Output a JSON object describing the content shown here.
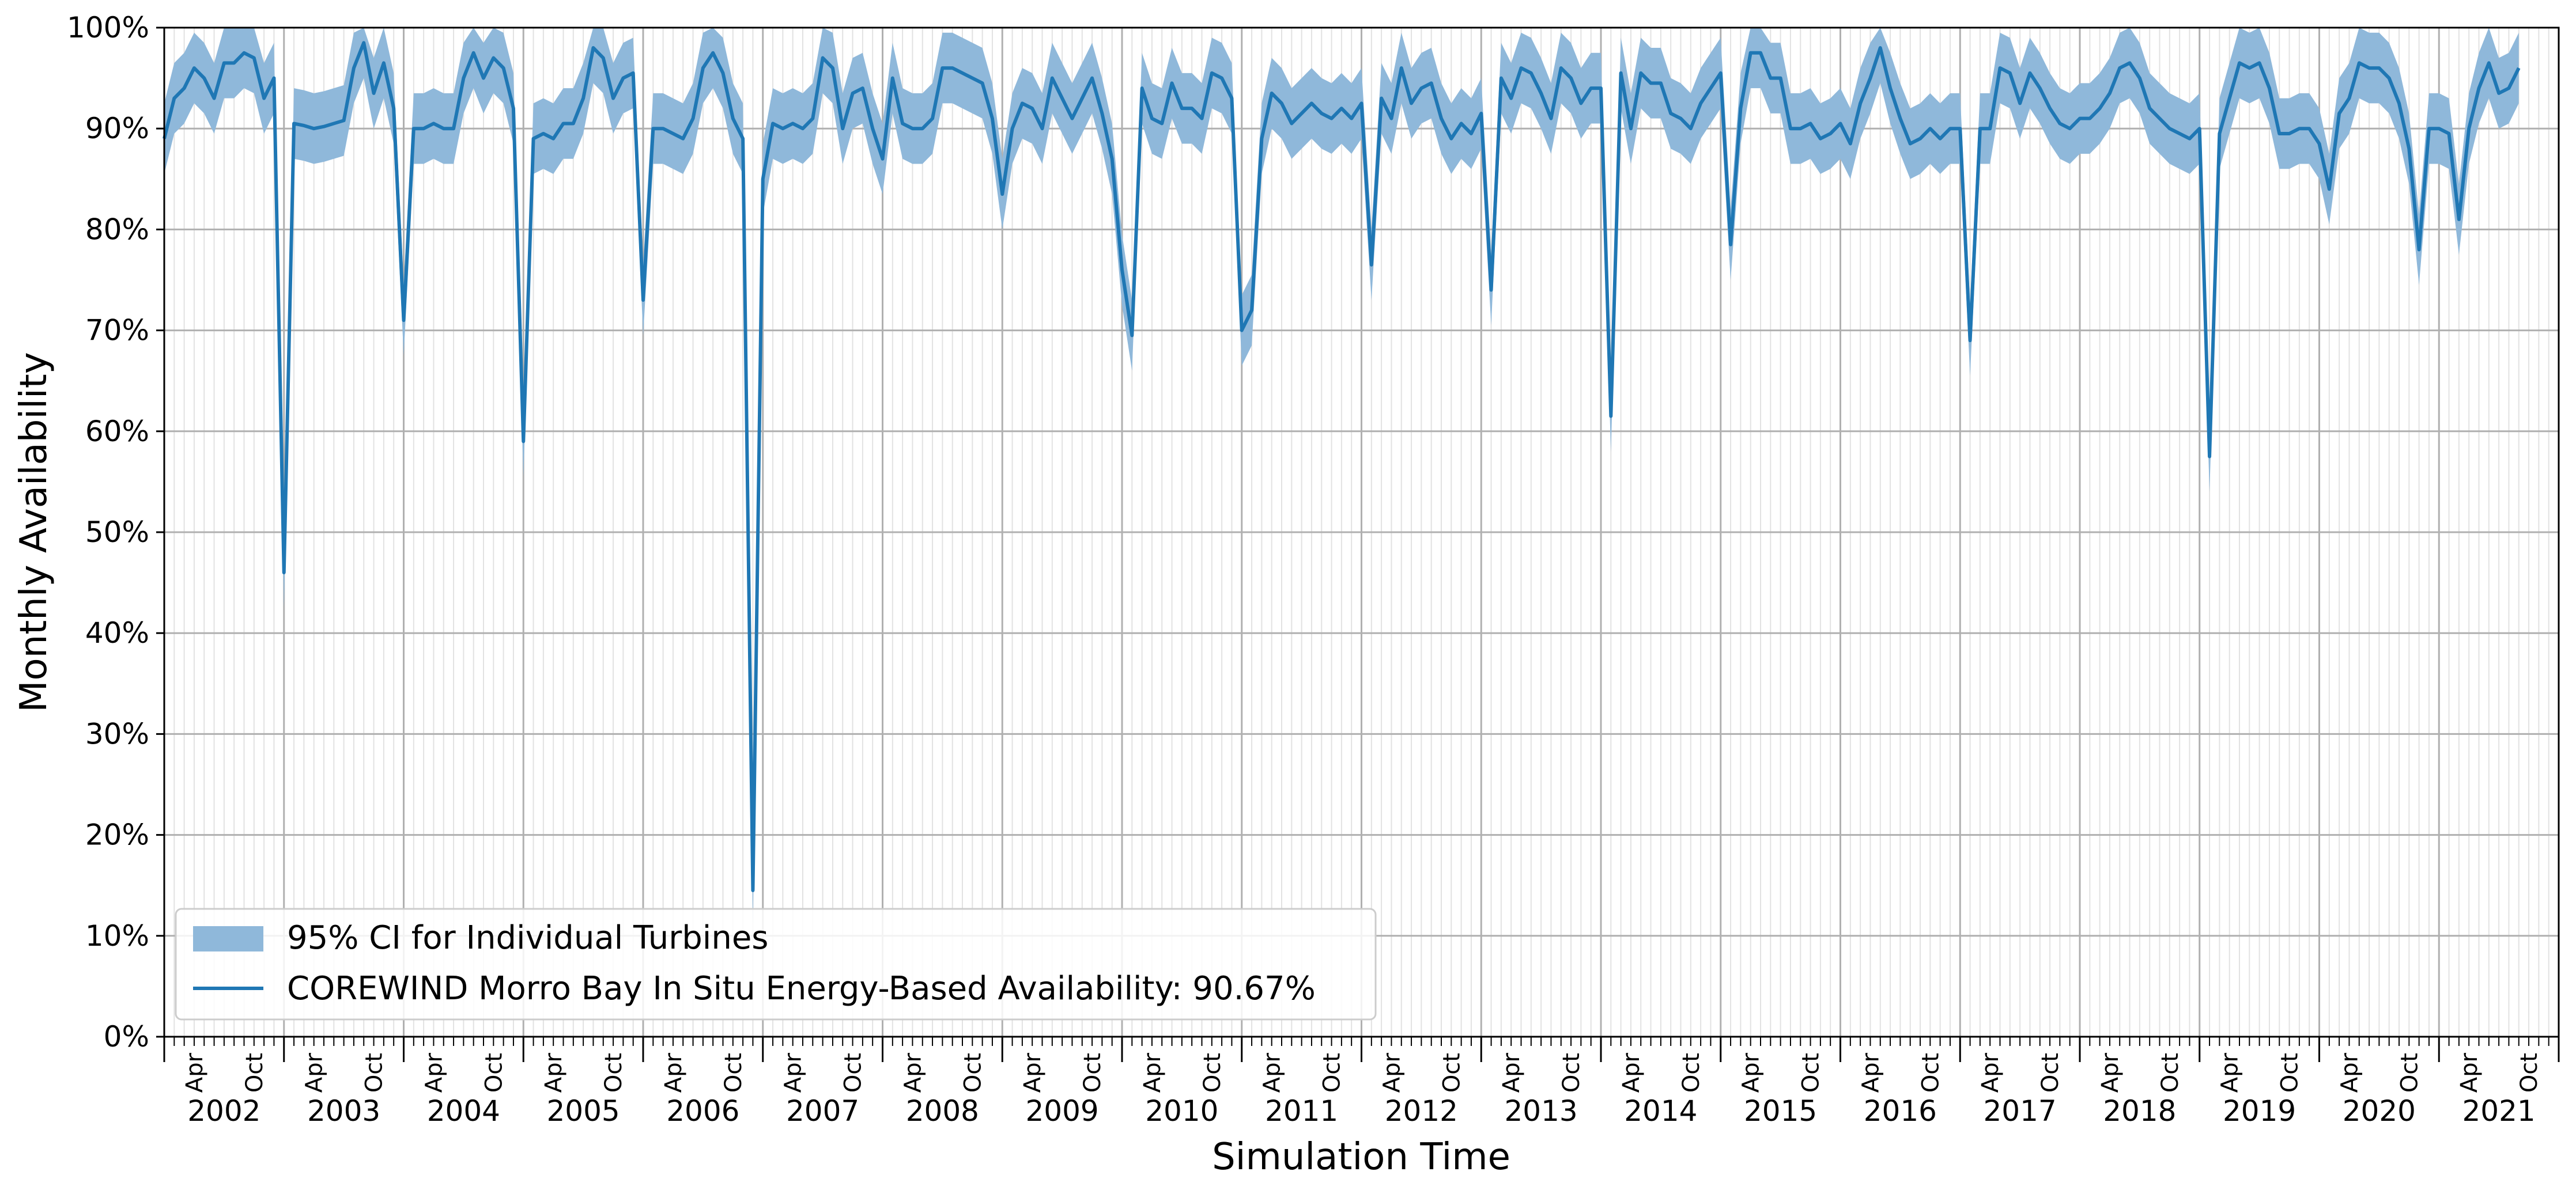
{
  "chart_data": {
    "type": "line",
    "xlabel": "Simulation Time",
    "ylabel": "Monthly Availability",
    "ylim": [
      0,
      100
    ],
    "xlim": [
      "2002-01",
      "2021-12"
    ],
    "y_ticks": [
      0,
      10,
      20,
      30,
      40,
      50,
      60,
      70,
      80,
      90,
      100
    ],
    "y_tick_suffix": "%",
    "x_major_labels": [
      "2002",
      "2003",
      "2004",
      "2005",
      "2006",
      "2007",
      "2008",
      "2009",
      "2010",
      "2011",
      "2012",
      "2013",
      "2014",
      "2015",
      "2016",
      "2017",
      "2018",
      "2019",
      "2020",
      "2021"
    ],
    "x_minor_labels": [
      "Apr",
      "Oct"
    ],
    "grid": true,
    "legend_position": "lower-left",
    "colors": {
      "line": "#1f77b4",
      "band": "#8fb8da",
      "grid_major": "#b0b0b0",
      "grid_minor": "#e2e2e2"
    },
    "series": [
      {
        "name": "COREWIND Morro Bay In Situ Energy-Based Availability: 90.67%",
        "kind": "line",
        "start": "2002-01",
        "values": [
          89,
          93,
          94,
          96,
          95,
          93,
          96.5,
          96.5,
          97.5,
          97,
          93,
          95,
          46,
          90.5,
          90.3,
          90,
          90.2,
          90.5,
          90.8,
          96,
          98.5,
          93.5,
          96.5,
          92,
          71,
          90,
          90,
          90.5,
          90,
          90,
          95,
          97.5,
          95,
          97,
          96,
          92,
          59,
          89,
          89.5,
          89,
          90.5,
          90.5,
          93,
          98,
          97,
          93,
          95,
          95.5,
          73,
          90,
          90,
          89.5,
          89,
          91,
          96,
          97.5,
          95.5,
          91,
          89,
          14.5,
          85,
          90.5,
          90,
          90.5,
          90,
          91,
          97,
          96,
          90,
          93.5,
          94,
          90,
          87,
          95,
          90.5,
          90,
          90,
          91,
          96,
          96,
          95.5,
          95,
          94.5,
          91,
          83.5,
          90,
          92.5,
          92,
          90,
          95,
          93,
          91,
          93,
          95,
          91.5,
          87,
          76,
          69.5,
          94,
          91,
          90.5,
          94.5,
          92,
          92,
          91,
          95.5,
          95,
          93,
          70,
          72,
          89,
          93.5,
          92.5,
          90.5,
          91.5,
          92.5,
          91.5,
          91,
          92,
          91,
          92.5,
          76.5,
          93,
          91,
          96,
          92.5,
          94,
          94.5,
          91,
          89,
          90.5,
          89.5,
          91.5,
          74,
          95,
          93,
          96,
          95.5,
          93.5,
          91,
          96,
          95,
          92.5,
          94,
          94,
          61.5,
          95.5,
          90,
          95.5,
          94.5,
          94.5,
          91.5,
          91,
          90,
          92.5,
          94,
          95.5,
          78.5,
          92,
          97.5,
          97.5,
          95,
          95,
          90,
          90,
          90.5,
          89,
          89.5,
          90.5,
          88.5,
          92.5,
          95,
          98,
          94,
          91,
          88.5,
          89,
          90,
          89,
          90,
          90,
          69,
          90,
          90,
          96,
          95.5,
          92.5,
          95.5,
          94,
          92,
          90.5,
          90,
          91,
          91,
          92,
          93.5,
          96,
          96.5,
          95,
          92,
          91,
          90,
          89.5,
          89,
          90,
          57.5,
          89.5,
          93,
          96.5,
          96,
          96.5,
          94,
          89.5,
          89.5,
          90,
          90,
          88.5,
          84,
          91.5,
          93,
          96.5,
          96,
          96,
          95,
          92.5,
          88,
          78,
          90,
          90,
          89.5,
          81,
          90,
          94,
          96.5,
          93.5,
          94,
          96
        ]
      },
      {
        "name": "95% CI for Individual Turbines",
        "kind": "band",
        "note_from_legend": true
      }
    ],
    "ci_half_width": 3.5
  }
}
